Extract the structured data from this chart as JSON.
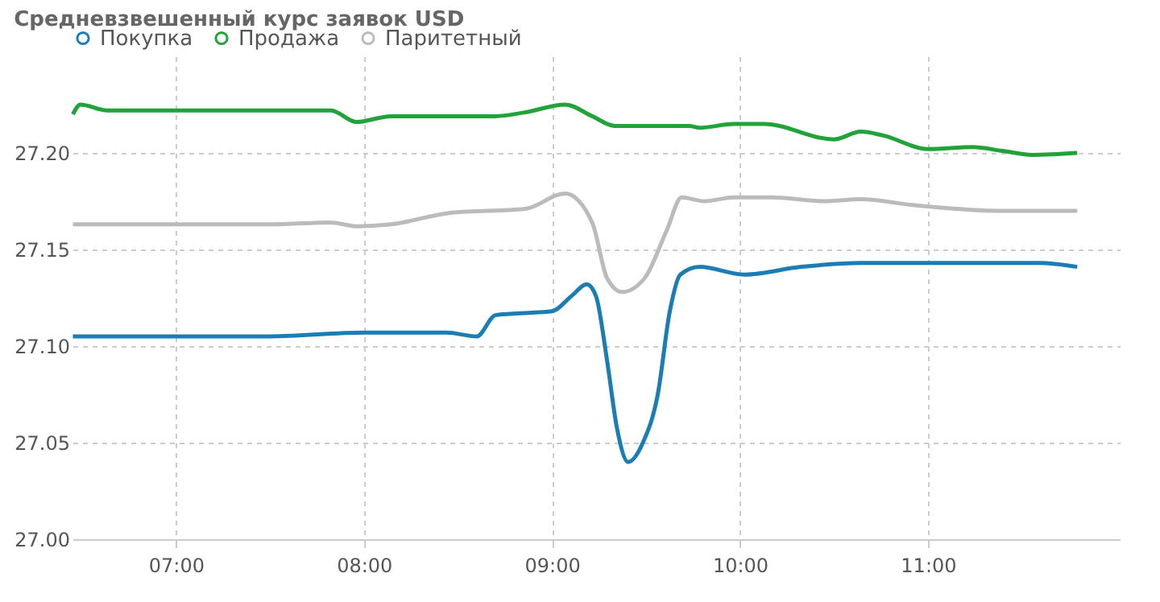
{
  "chart_data": {
    "type": "line",
    "title": "Средневзвешенный курс заявок USD",
    "xlim": [
      6.45,
      12.02
    ],
    "ylim": [
      27.0,
      27.25
    ],
    "xticks": [
      {
        "value": 7,
        "label": "07:00"
      },
      {
        "value": 8,
        "label": "08:00"
      },
      {
        "value": 9,
        "label": "09:00"
      },
      {
        "value": 10,
        "label": "10:00"
      },
      {
        "value": 11,
        "label": "11:00"
      }
    ],
    "yticks": [
      {
        "value": 27.0,
        "label": "27.00"
      },
      {
        "value": 27.05,
        "label": "27.05"
      },
      {
        "value": 27.1,
        "label": "27.10"
      },
      {
        "value": 27.15,
        "label": "27.15"
      },
      {
        "value": 27.2,
        "label": "27.20"
      }
    ],
    "grid": true,
    "legend": "top",
    "marker": "none",
    "line_style": "solid",
    "series": [
      {
        "name": "Покупка",
        "color": "#1a7db3",
        "x": [
          6.452,
          7.0,
          7.5,
          8.0,
          8.44,
          8.6,
          8.7,
          8.83,
          9.0,
          9.105,
          9.185,
          9.234,
          9.294,
          9.345,
          9.405,
          9.484,
          9.563,
          9.627,
          9.683,
          9.786,
          10.024,
          10.325,
          10.643,
          10.802,
          11.119,
          11.595,
          11.794
        ],
        "values": [
          27.105,
          27.105,
          27.105,
          27.107,
          27.107,
          27.105,
          27.116,
          27.117,
          27.118,
          27.126,
          27.132,
          27.126,
          27.092,
          27.058,
          27.04,
          27.05,
          27.075,
          27.118,
          27.137,
          27.141,
          27.137,
          27.141,
          27.143,
          27.143,
          27.143,
          27.143,
          27.141
        ]
      },
      {
        "name": "Продажа",
        "color": "#22a33a",
        "x": [
          6.452,
          6.492,
          6.635,
          7.5,
          7.825,
          7.96,
          8.143,
          8.698,
          8.857,
          9.071,
          9.214,
          9.333,
          9.73,
          9.786,
          9.968,
          10.127,
          10.5,
          10.643,
          10.762,
          11.0,
          11.238,
          11.397,
          11.556,
          11.794
        ],
        "values": [
          27.22,
          27.225,
          27.222,
          27.222,
          27.222,
          27.216,
          27.219,
          27.219,
          27.221,
          27.225,
          27.219,
          27.214,
          27.214,
          27.213,
          27.215,
          27.215,
          27.207,
          27.211,
          27.209,
          27.202,
          27.203,
          27.201,
          27.199,
          27.2
        ]
      },
      {
        "name": "Паритетный",
        "color": "#bbbbbb",
        "x": [
          6.452,
          7.5,
          7.825,
          7.96,
          8.143,
          8.46,
          8.857,
          9.071,
          9.214,
          9.294,
          9.373,
          9.492,
          9.611,
          9.69,
          9.81,
          9.968,
          10.167,
          10.444,
          10.643,
          10.921,
          11.397,
          11.794
        ],
        "values": [
          27.163,
          27.163,
          27.164,
          27.162,
          27.163,
          27.169,
          27.171,
          27.179,
          27.164,
          27.135,
          27.128,
          27.135,
          27.16,
          27.177,
          27.175,
          27.177,
          27.177,
          27.175,
          27.176,
          27.173,
          27.17,
          27.17
        ]
      }
    ]
  }
}
